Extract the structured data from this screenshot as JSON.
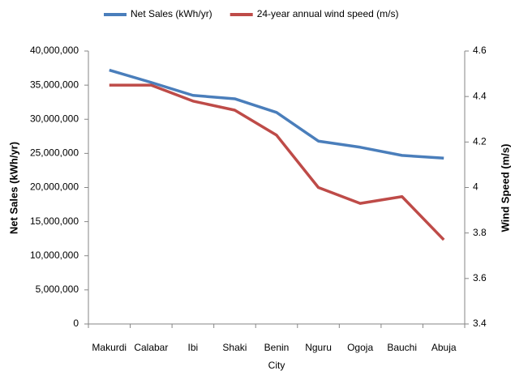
{
  "chart_data": {
    "type": "line",
    "x_label": "City",
    "y_label": "Net Sales (kWh/yr)",
    "y2_label": "Wind Speed (m/s)",
    "categories": [
      "Makurdi",
      "Calabar",
      "Ibi",
      "Shaki",
      "Benin",
      "Nguru",
      "Ogoja",
      "Bauchi",
      "Abuja"
    ],
    "series": [
      {
        "name": "Net Sales (kWh/yr)",
        "color": "#4a7ebb",
        "values": [
          37200000,
          35400000,
          33500000,
          33000000,
          31000000,
          26800000,
          25900000,
          24700000,
          24300000
        ]
      },
      {
        "name": "24-year annual wind speed (m/s)",
        "color": "#be4b48",
        "axis": "y2",
        "values": [
          4.45,
          4.45,
          4.38,
          4.34,
          4.23,
          4.0,
          3.93,
          3.96,
          3.77
        ]
      }
    ],
    "ylim": [
      0,
      40000000
    ],
    "yticks": [
      0,
      {
        "value": 5000000,
        "label": "5,000,000"
      },
      {
        "value": 10000000,
        "label": "10,000,000"
      },
      {
        "value": 15000000,
        "label": "15,000,000"
      },
      {
        "value": 20000000,
        "label": "20,000,000"
      },
      {
        "value": 25000000,
        "label": "25,000,000"
      },
      {
        "value": 30000000,
        "label": "30,000,000"
      },
      {
        "value": 35000000,
        "label": "35,000,000"
      },
      {
        "value": 40000000,
        "label": "40,000,000"
      }
    ],
    "y2lim": [
      3.4,
      4.6
    ],
    "y2ticks": [
      3.4,
      3.6,
      3.8,
      4,
      4.2,
      4.4,
      4.6
    ],
    "legend": "top",
    "grid": false
  }
}
